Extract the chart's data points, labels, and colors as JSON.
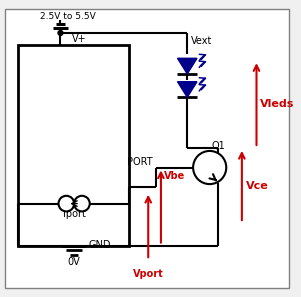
{
  "bg_color": "#f0f0f0",
  "border_color": "#808080",
  "wire_color": "#000000",
  "red_color": "#cc0000",
  "blue_color": "#00008b",
  "labels": {
    "vcc": "2.5V to 5.5V",
    "vplus": "V+",
    "vext": "Vext",
    "vleds": "Vleds",
    "vce": "Vce",
    "vbe": "Vbe",
    "q1": "Q1",
    "port": "PORT",
    "iport": "Iport",
    "gnd": "GND",
    "gnd_v": "0V",
    "vport": "Vport"
  }
}
